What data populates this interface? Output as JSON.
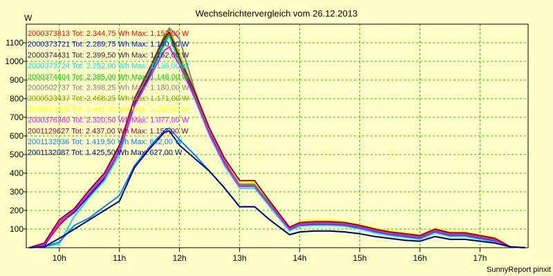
{
  "chart_data": {
    "type": "line",
    "title": "Wechselrichtervergleich vom 26.12.2013",
    "ylabel": "W",
    "credit": "SunnyReport pinxit",
    "ylim": [
      0,
      1200
    ],
    "xlim": [
      9.45,
      17.8
    ],
    "yticks": [
      100,
      200,
      300,
      400,
      500,
      600,
      700,
      800,
      900,
      1000,
      1100
    ],
    "xticks": [
      10,
      11,
      12,
      13,
      14,
      15,
      16,
      17
    ],
    "xtick_labels": [
      "10h",
      "11h",
      "12h",
      "13h",
      "14h",
      "15h",
      "16h",
      "17h"
    ],
    "x": [
      9.5,
      9.75,
      10.0,
      10.25,
      10.5,
      10.75,
      11.0,
      11.25,
      11.5,
      11.75,
      11.83,
      12.0,
      12.25,
      12.5,
      12.75,
      13.0,
      13.25,
      13.5,
      13.83,
      14.0,
      14.25,
      14.5,
      14.75,
      15.0,
      15.25,
      15.5,
      15.75,
      16.0,
      16.25,
      16.5,
      16.75,
      17.0,
      17.25,
      17.5,
      17.75
    ],
    "series": [
      {
        "name": "2000373813",
        "legend": "2000373813 Tot: 2.344,75 Wh Max: 1.152,00 W",
        "color": "#ff0000",
        "values": [
          0,
          15,
          120,
          200,
          290,
          380,
          520,
          780,
          930,
          1110,
          1152,
          1010,
          820,
          620,
          460,
          330,
          330,
          230,
          100,
          125,
          130,
          130,
          125,
          110,
          90,
          75,
          65,
          55,
          90,
          70,
          70,
          55,
          40,
          5,
          0
        ]
      },
      {
        "name": "2000373721",
        "legend": "2000373721 Tot: 2.289,75 Wh Max: 1.140,00 W",
        "color": "#0000cc",
        "values": [
          0,
          10,
          130,
          190,
          280,
          370,
          520,
          770,
          920,
          1100,
          1140,
          1000,
          810,
          610,
          450,
          330,
          330,
          230,
          95,
          120,
          125,
          125,
          120,
          105,
          85,
          70,
          60,
          50,
          85,
          65,
          65,
          50,
          35,
          5,
          0
        ]
      },
      {
        "name": "2000374431",
        "legend": "2000374431 Tot: 2.399,50 Wh Max: 1.162,00 W",
        "color": "#2a1a40",
        "values": [
          0,
          20,
          140,
          200,
          300,
          390,
          540,
          790,
          940,
          1120,
          1162,
          1020,
          830,
          630,
          470,
          340,
          340,
          240,
          105,
          130,
          135,
          135,
          130,
          115,
          95,
          80,
          70,
          60,
          95,
          75,
          75,
          60,
          45,
          5,
          0
        ]
      },
      {
        "name": "2000373724",
        "legend": "2000373724 Tot: 2.252,00 Wh Max: 1.136,00 W",
        "color": "#00e5e5",
        "values": [
          0,
          5,
          20,
          170,
          270,
          360,
          500,
          760,
          910,
          1090,
          1136,
          990,
          800,
          600,
          440,
          320,
          320,
          220,
          90,
          115,
          120,
          120,
          115,
          100,
          80,
          65,
          55,
          45,
          80,
          60,
          60,
          45,
          30,
          5,
          0
        ]
      },
      {
        "name": "2000374404",
        "legend": "2000374404 Tot: 2.385,00 Wh Max: 1.148,00 W",
        "color": "#00cc00",
        "values": [
          0,
          20,
          140,
          210,
          300,
          390,
          530,
          790,
          940,
          1110,
          1148,
          1010,
          830,
          630,
          470,
          340,
          340,
          240,
          105,
          130,
          135,
          135,
          130,
          115,
          95,
          80,
          70,
          60,
          95,
          75,
          75,
          60,
          45,
          5,
          0
        ]
      },
      {
        "name": "2000502737",
        "legend": "2000502737 Tot: 2.398,25 Wh Max: 1.180,00 W",
        "color": "#808080",
        "values": [
          0,
          20,
          140,
          200,
          300,
          390,
          540,
          790,
          950,
          1130,
          1180,
          1120,
          850,
          630,
          470,
          340,
          330,
          230,
          100,
          125,
          130,
          130,
          125,
          110,
          90,
          75,
          65,
          55,
          90,
          70,
          70,
          55,
          40,
          5,
          0
        ]
      },
      {
        "name": "2000523437",
        "legend": "2000523437 Tot: 2.468,25 Wh Max: 1.171,00 W",
        "color": "#999900",
        "values": [
          0,
          25,
          150,
          210,
          310,
          400,
          550,
          800,
          960,
          1140,
          1171,
          1040,
          840,
          640,
          480,
          350,
          350,
          250,
          110,
          135,
          140,
          140,
          135,
          120,
          100,
          85,
          75,
          65,
          100,
          80,
          80,
          65,
          50,
          5,
          0
        ]
      },
      {
        "name": "2000523435",
        "legend": "2000523435 Tot: 2.441,00 Wh Max: 1.160,00 W",
        "color": "#ffff00",
        "values": [
          0,
          25,
          150,
          210,
          310,
          400,
          550,
          800,
          960,
          1130,
          1160,
          1030,
          840,
          640,
          480,
          350,
          350,
          250,
          110,
          140,
          150,
          150,
          140,
          125,
          105,
          90,
          80,
          70,
          105,
          85,
          85,
          70,
          55,
          5,
          0
        ]
      },
      {
        "name": "2000376360",
        "legend": "2000376360 Tot: 2.320,50 Wh Max: 1.077,00 W",
        "color": "#ff00ff",
        "values": [
          0,
          15,
          130,
          200,
          290,
          380,
          520,
          760,
          910,
          1060,
          1077,
          980,
          810,
          610,
          450,
          330,
          330,
          230,
          100,
          125,
          130,
          130,
          125,
          110,
          90,
          75,
          65,
          55,
          90,
          70,
          70,
          55,
          40,
          5,
          0
        ]
      },
      {
        "name": "2001129627",
        "legend": "2001129627 Tot: 2.437,00 Wh Max: 1.157,00 W",
        "color": "#990033",
        "values": [
          0,
          25,
          150,
          210,
          310,
          400,
          550,
          800,
          960,
          1130,
          1157,
          1020,
          840,
          640,
          480,
          360,
          360,
          250,
          110,
          135,
          140,
          140,
          135,
          120,
          100,
          85,
          75,
          65,
          100,
          80,
          80,
          65,
          50,
          5,
          0
        ]
      },
      {
        "name": "2001132036",
        "legend": "2001132036 Tot: 1.419,50 Wh Max: 642,00 W",
        "color": "#0080ff",
        "values": [
          0,
          5,
          30,
          120,
          160,
          220,
          280,
          440,
          540,
          630,
          642,
          580,
          500,
          410,
          320,
          220,
          220,
          150,
          70,
          85,
          90,
          90,
          85,
          75,
          60,
          50,
          40,
          35,
          60,
          45,
          45,
          35,
          25,
          5,
          0
        ]
      },
      {
        "name": "2001132087",
        "legend": "2001132087 Tot: 1.425,50 Wh Max: 627,00 W",
        "color": "#000080",
        "values": [
          0,
          5,
          50,
          100,
          150,
          200,
          250,
          430,
          530,
          620,
          627,
          550,
          480,
          410,
          320,
          220,
          220,
          150,
          70,
          85,
          90,
          90,
          85,
          75,
          60,
          50,
          40,
          35,
          60,
          45,
          45,
          35,
          25,
          5,
          0
        ]
      }
    ]
  }
}
